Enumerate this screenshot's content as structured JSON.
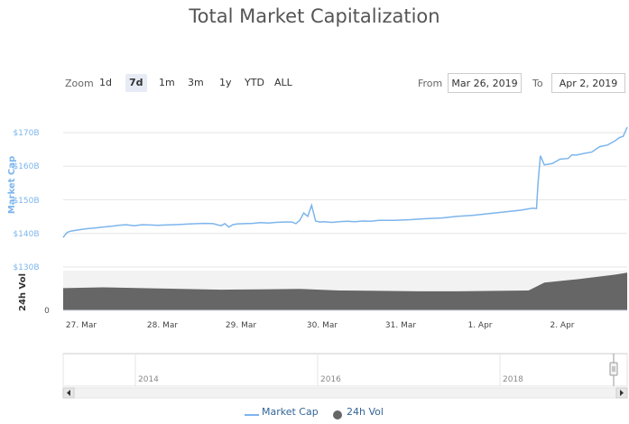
{
  "chart_data": {
    "type": "line",
    "title": "Total Market Capitalization",
    "ylabel": "Market Cap",
    "ylabel2": "24h Vol",
    "y_ticks": [
      "$130B",
      "$140B",
      "$150B",
      "$160B",
      "$170B"
    ],
    "y_tick_values": [
      130,
      140,
      150,
      160,
      170
    ],
    "ylim": [
      130,
      172
    ],
    "vol_tick": "0",
    "x_ticks": [
      "27. Mar",
      "28. Mar",
      "29. Mar",
      "30. Mar",
      "31. Mar",
      "1. Apr",
      "2. Apr"
    ],
    "navigator_ticks": [
      "2014",
      "2016",
      "2018"
    ],
    "series": [
      {
        "name": "Market Cap",
        "color": "#7cb5ec",
        "x": [
          0,
          0.05,
          0.1,
          0.2,
          0.3,
          0.4,
          0.5,
          0.6,
          0.7,
          0.8,
          0.9,
          1.0,
          1.1,
          1.2,
          1.3,
          1.4,
          1.5,
          1.6,
          1.7,
          1.8,
          1.9,
          2.0,
          2.05,
          2.1,
          2.15,
          2.2,
          2.3,
          2.4,
          2.5,
          2.6,
          2.7,
          2.8,
          2.9,
          2.95,
          3.0,
          3.05,
          3.1,
          3.15,
          3.2,
          3.25,
          3.3,
          3.4,
          3.5,
          3.6,
          3.7,
          3.8,
          3.9,
          4.0,
          4.2,
          4.4,
          4.6,
          4.8,
          5.0,
          5.2,
          5.4,
          5.6,
          5.8,
          5.95,
          6.0,
          6.02,
          6.05,
          6.1,
          6.2,
          6.3,
          6.4,
          6.45,
          6.5,
          6.6,
          6.7,
          6.8,
          6.9,
          7.0,
          7.05,
          7.1,
          7.15
        ],
        "values": [
          138.8,
          140.3,
          140.7,
          141.1,
          141.4,
          141.6,
          141.9,
          142.1,
          142.4,
          142.6,
          142.3,
          142.6,
          142.5,
          142.4,
          142.5,
          142.6,
          142.7,
          142.8,
          142.9,
          143.0,
          142.9,
          142.3,
          142.9,
          141.9,
          142.6,
          142.8,
          142.9,
          143.0,
          143.2,
          143.1,
          143.3,
          143.4,
          143.4,
          142.9,
          143.9,
          146.1,
          145.1,
          148.4,
          143.7,
          143.4,
          143.5,
          143.3,
          143.5,
          143.6,
          143.5,
          143.7,
          143.6,
          143.9,
          143.9,
          144.1,
          144.4,
          144.6,
          145.1,
          145.4,
          145.9,
          146.4,
          146.9,
          147.5,
          147.4,
          155.0,
          163.1,
          160.4,
          160.8,
          162.1,
          162.3,
          163.4,
          163.3,
          163.8,
          164.2,
          165.8,
          166.3,
          167.6,
          168.5,
          168.9,
          171.6
        ]
      },
      {
        "name": "24h Vol",
        "color": "#666666",
        "x": [
          0,
          0.5,
          1.0,
          1.5,
          2.0,
          2.5,
          3.0,
          3.5,
          4.0,
          4.5,
          5.0,
          5.5,
          5.9,
          6.0,
          6.1,
          6.5,
          7.0,
          7.15
        ],
        "values": [
          0.56,
          0.58,
          0.56,
          0.54,
          0.52,
          0.53,
          0.54,
          0.5,
          0.49,
          0.48,
          0.48,
          0.49,
          0.5,
          0.6,
          0.7,
          0.78,
          0.9,
          0.95
        ]
      }
    ]
  },
  "zoom": {
    "label": "Zoom",
    "buttons": [
      "1d",
      "7d",
      "1m",
      "3m",
      "1y",
      "YTD",
      "ALL"
    ],
    "active": "7d"
  },
  "range": {
    "from_label": "From",
    "from_value": "Mar 26, 2019",
    "to_label": "To",
    "to_value": "Apr 2, 2019"
  }
}
